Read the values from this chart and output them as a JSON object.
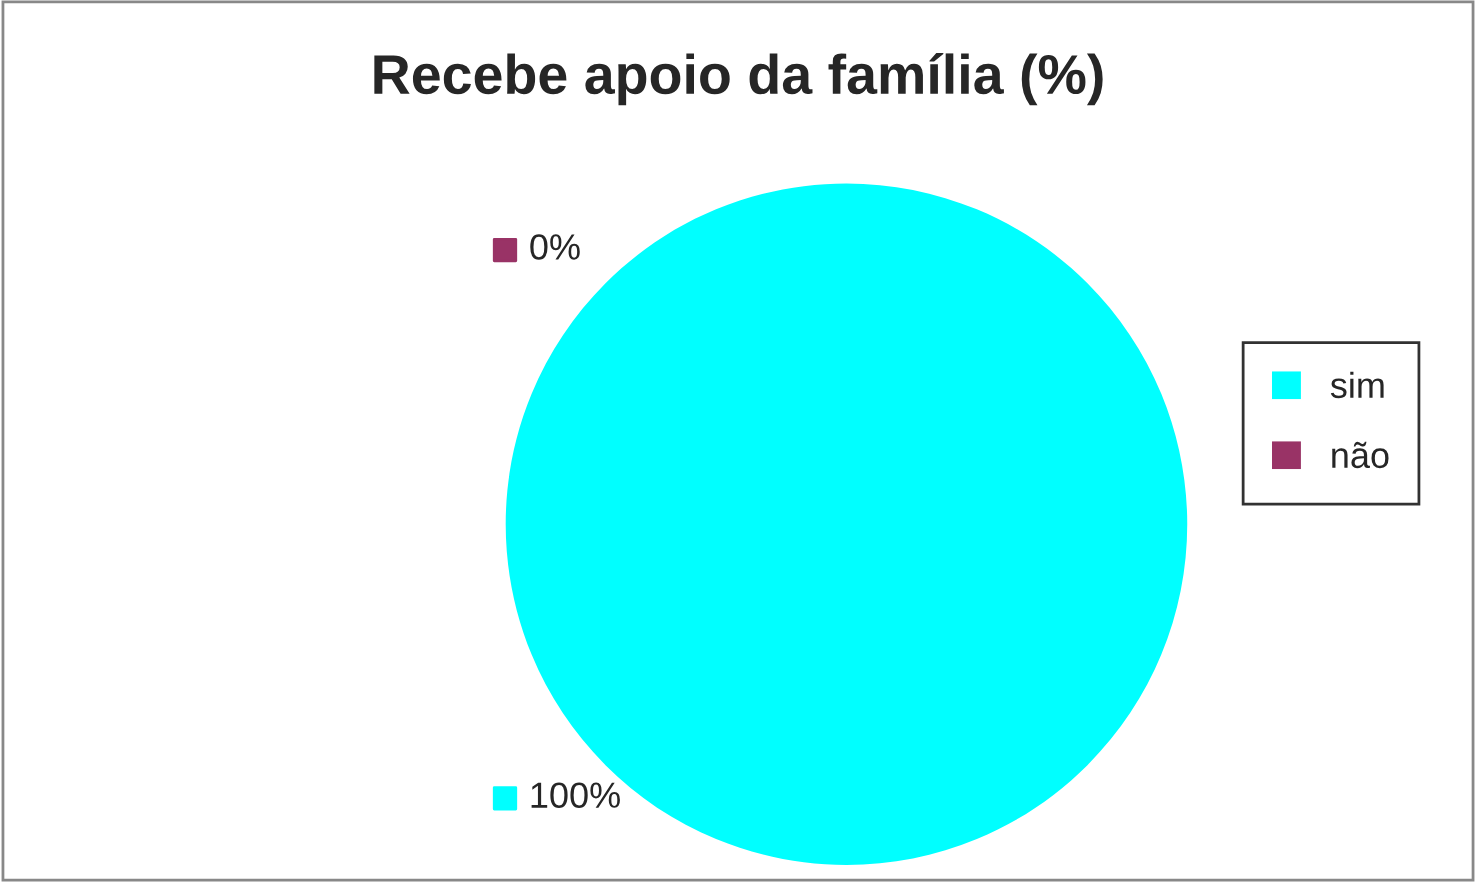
{
  "chart_data": {
    "type": "pie",
    "title": "Recebe apoio da família (%)",
    "categories": [
      "sim",
      "não"
    ],
    "values": [
      100,
      0
    ],
    "colors": [
      "#00ffff",
      "#993366"
    ],
    "value_labels": [
      "100%",
      "0%"
    ],
    "legend": "right"
  }
}
